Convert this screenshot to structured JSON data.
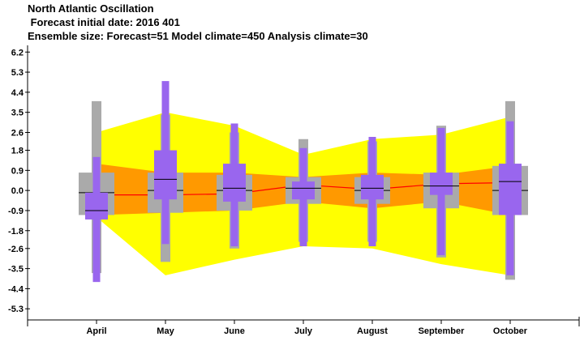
{
  "header": {
    "title": "North Atlantic Oscillation",
    "subtitle": " Forecast initial date: 2016 401",
    "ensemble_line": "Ensemble size: Forecast=51 Model climate=450 Analysis climate=30"
  },
  "colors": {
    "outer_band": "#ffff00",
    "inner_band": "#ff9900",
    "climate_box": "#aaaaaa",
    "forecast_box": "#9966ee",
    "median_line": "#000000",
    "mean_line": "#ff0000"
  },
  "chart_data": {
    "type": "box",
    "categories": [
      "April",
      "May",
      "June",
      "July",
      "August",
      "September",
      "October"
    ],
    "ylim": [
      -5.8,
      6.5
    ],
    "y_ticks": [
      "6.2",
      "5.3",
      "4.4",
      "3.5",
      "2.6",
      "1.8",
      "0.9",
      "0.0",
      "-0.9",
      "-1.8",
      "-2.6",
      "-3.5",
      "-4.4",
      "-5.3"
    ],
    "y_tick_values": [
      6.2,
      5.3,
      4.4,
      3.5,
      2.6,
      1.8,
      0.9,
      0.0,
      -0.9,
      -1.8,
      -2.6,
      -3.5,
      -4.4,
      -5.3
    ],
    "model_climate_band": {
      "p_outer_high": [
        2.6,
        3.5,
        2.9,
        1.6,
        2.3,
        2.5,
        3.3
      ],
      "p_outer_low": [
        -1.2,
        -3.8,
        -3.1,
        -2.5,
        -2.6,
        -3.3,
        -3.8
      ],
      "p_inner_high": [
        1.2,
        0.8,
        0.8,
        0.6,
        0.8,
        0.7,
        1.1
      ],
      "p_inner_low": [
        -1.1,
        -1.0,
        -0.9,
        -0.5,
        -0.8,
        -0.5,
        -1.1
      ],
      "mean": [
        -0.2,
        -0.2,
        -0.15,
        0.25,
        0.05,
        0.3,
        0.35
      ]
    },
    "analysis_climate": {
      "whisker_high": [
        4.0,
        3.4,
        2.6,
        2.3,
        2.2,
        2.9,
        4.0
      ],
      "box_high": [
        0.8,
        0.8,
        0.7,
        0.6,
        0.6,
        0.8,
        1.1
      ],
      "median": [
        -0.1,
        0.0,
        0.0,
        0.1,
        0.0,
        0.2,
        0.0
      ],
      "box_low": [
        -1.1,
        -1.0,
        -0.9,
        -0.6,
        -0.6,
        -0.8,
        -1.1
      ],
      "whisker_low": [
        -3.7,
        -3.2,
        -2.6,
        -2.3,
        -2.3,
        -3.0,
        -4.0
      ]
    },
    "forecast": {
      "whisker_high": [
        1.5,
        4.9,
        3.0,
        1.9,
        2.4,
        2.8,
        3.1
      ],
      "box_high": [
        -0.1,
        1.8,
        1.2,
        0.4,
        0.7,
        0.8,
        1.2
      ],
      "median": [
        -0.9,
        0.5,
        0.1,
        0.1,
        0.1,
        0.2,
        0.4
      ],
      "box_low": [
        -1.3,
        -0.4,
        -0.5,
        -0.4,
        -0.4,
        -0.2,
        -1.1
      ],
      "whisker_low": [
        -4.1,
        -2.4,
        -2.5,
        -2.5,
        -2.5,
        -2.9,
        -3.8
      ]
    }
  }
}
